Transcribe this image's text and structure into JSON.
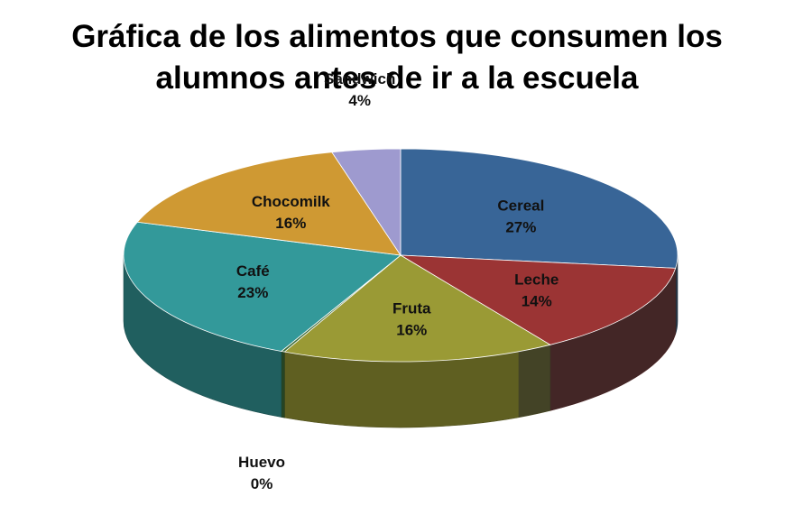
{
  "chart_data": {
    "type": "pie",
    "title_lines": [
      "Gráfica de los alimentos que consumen los",
      "alumnos antes de ir a la escuela"
    ],
    "slices": [
      {
        "label": "Cereal",
        "percent_label": "27%",
        "value": 27,
        "color": "#386597"
      },
      {
        "label": "Leche",
        "percent_label": "14%",
        "value": 14,
        "color": "#9B3434"
      },
      {
        "label": "Fruta",
        "percent_label": "16%",
        "value": 16,
        "color": "#9A9A35"
      },
      {
        "label": "Huevo",
        "percent_label": "0%",
        "value": 0.2,
        "color": "#3E6D3A"
      },
      {
        "label": "Café",
        "percent_label": "23%",
        "value": 23,
        "color": "#33999A"
      },
      {
        "label": "Chocomilk",
        "percent_label": "16%",
        "value": 16,
        "color": "#CF9933"
      },
      {
        "label": "Sandwich",
        "percent_label": "4%",
        "value": 4,
        "color": "#9E9ACF"
      }
    ],
    "legend": "none",
    "style": "3d-pie"
  }
}
